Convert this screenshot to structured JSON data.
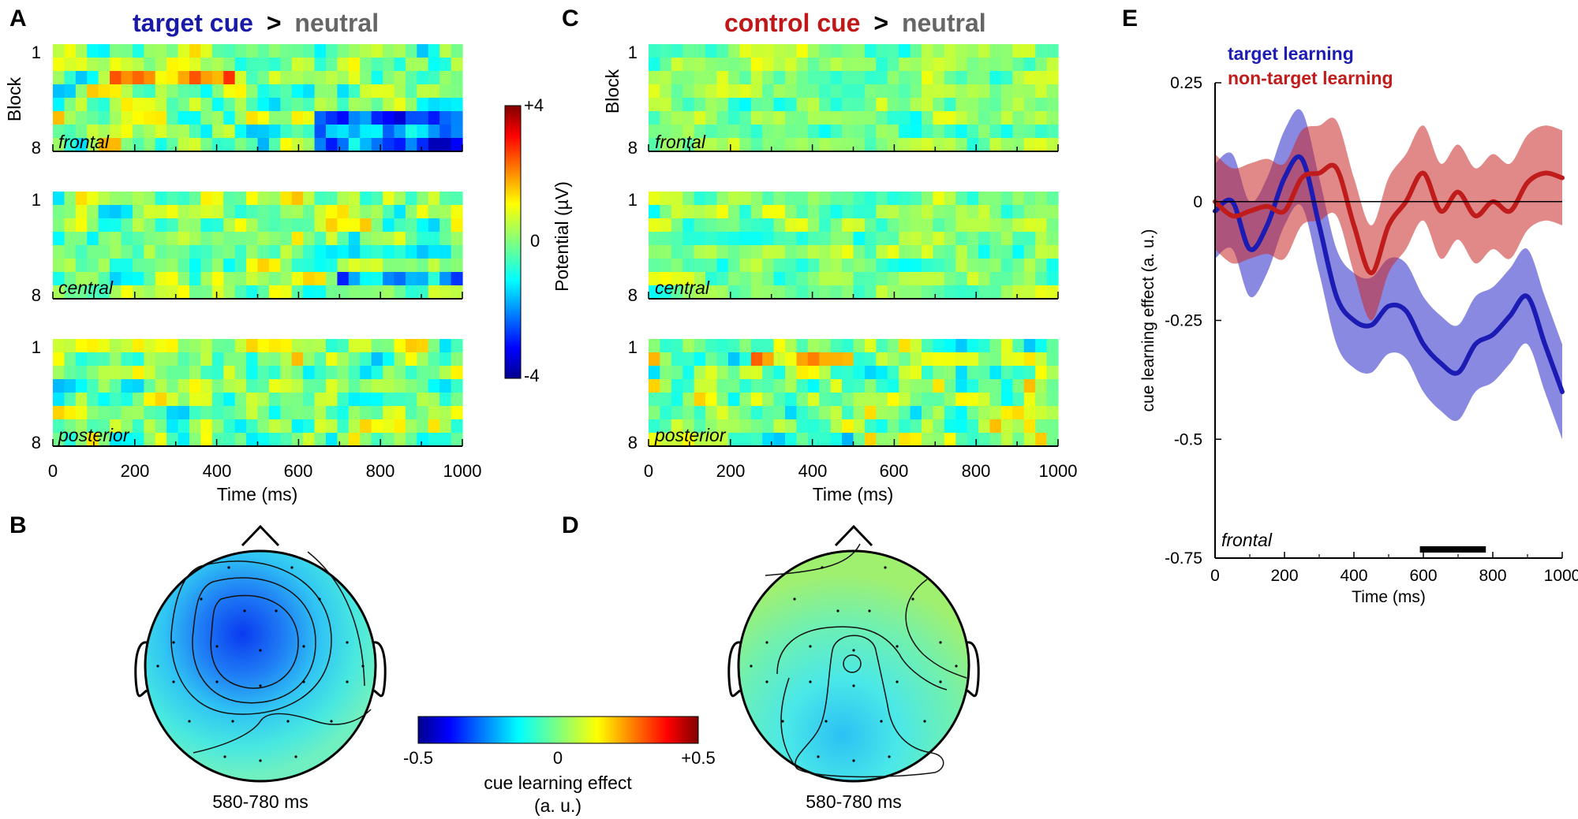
{
  "colors": {
    "target": "#1a1aa8",
    "control": "#c01818",
    "gray": "#666666",
    "target_line": "#1c1cb4",
    "nontarget_line": "#c01c1c"
  },
  "panels": {
    "A": {
      "letter": "A",
      "title": {
        "part1": "target cue",
        "sep": ">",
        "part2": "neutral"
      },
      "regions": [
        "frontal",
        "central",
        "posterior"
      ]
    },
    "C": {
      "letter": "C",
      "title": {
        "part1": "control cue",
        "sep": ">",
        "part2": "neutral"
      },
      "regions": [
        "frontal",
        "central",
        "posterior"
      ]
    },
    "B": {
      "letter": "B",
      "window": "580-780 ms"
    },
    "D": {
      "letter": "D",
      "window": "580-780 ms"
    },
    "E": {
      "letter": "E"
    }
  },
  "heatmap_axes": {
    "ylabel": "Block",
    "block_top": "1",
    "block_bottom": "8",
    "xlabel": "Time (ms)",
    "xticks": [
      "0",
      "200",
      "400",
      "600",
      "800",
      "1000"
    ]
  },
  "colorbar_potential": {
    "max": "+4",
    "mid": "0",
    "min": "-4",
    "label": "Potential (µV)"
  },
  "colorbar_effect": {
    "min": "-0.5",
    "mid": "0",
    "max": "+0.5",
    "label_line1": "cue learning effect",
    "label_line2": "(a. u.)"
  },
  "chart_data": [
    {
      "panel": "A",
      "type": "heatmap",
      "title": "target cue > neutral",
      "rows": "Block 1-8",
      "xlabel": "Time (ms)",
      "xlim": [
        0,
        1000
      ],
      "ylabel": "Block",
      "color_range_uV": [
        -4,
        4
      ],
      "subplots": [
        "frontal",
        "central",
        "posterior"
      ]
    },
    {
      "panel": "C",
      "type": "heatmap",
      "title": "control cue > neutral",
      "rows": "Block 1-8",
      "xlabel": "Time (ms)",
      "xlim": [
        0,
        1000
      ],
      "ylabel": "Block",
      "color_range_uV": [
        -4,
        4
      ],
      "subplots": [
        "frontal",
        "central",
        "posterior"
      ]
    },
    {
      "panel": "E",
      "type": "line",
      "title": "",
      "xlabel": "Time (ms)",
      "ylabel": "cue learning effect (a. u.)",
      "xlim": [
        0,
        1000
      ],
      "ylim": [
        -0.75,
        0.25
      ],
      "xticks": [
        "0",
        "200",
        "400",
        "600",
        "800",
        "1000"
      ],
      "yticks": [
        "0.25",
        "0",
        "-0.25",
        "-0.5",
        "-0.75"
      ],
      "annotation": "frontal",
      "significance_window_ms": [
        590,
        780
      ],
      "x": [
        0,
        50,
        100,
        150,
        200,
        250,
        300,
        350,
        400,
        450,
        500,
        550,
        600,
        650,
        700,
        750,
        800,
        850,
        900,
        950,
        1000
      ],
      "series": [
        {
          "name": "target learning",
          "values": [
            -0.02,
            0.0,
            -0.1,
            -0.05,
            0.05,
            0.09,
            -0.05,
            -0.2,
            -0.25,
            -0.26,
            -0.22,
            -0.23,
            -0.3,
            -0.34,
            -0.36,
            -0.3,
            -0.28,
            -0.24,
            -0.2,
            -0.3,
            -0.4
          ],
          "ci_halfwidth": 0.1
        },
        {
          "name": "non-target learning",
          "values": [
            0.0,
            -0.03,
            -0.02,
            -0.01,
            -0.02,
            0.05,
            0.06,
            0.07,
            -0.05,
            -0.15,
            -0.05,
            0.0,
            0.06,
            -0.02,
            0.02,
            -0.03,
            0.0,
            -0.02,
            0.04,
            0.06,
            0.05
          ],
          "ci_halfwidth": 0.1
        }
      ]
    }
  ]
}
